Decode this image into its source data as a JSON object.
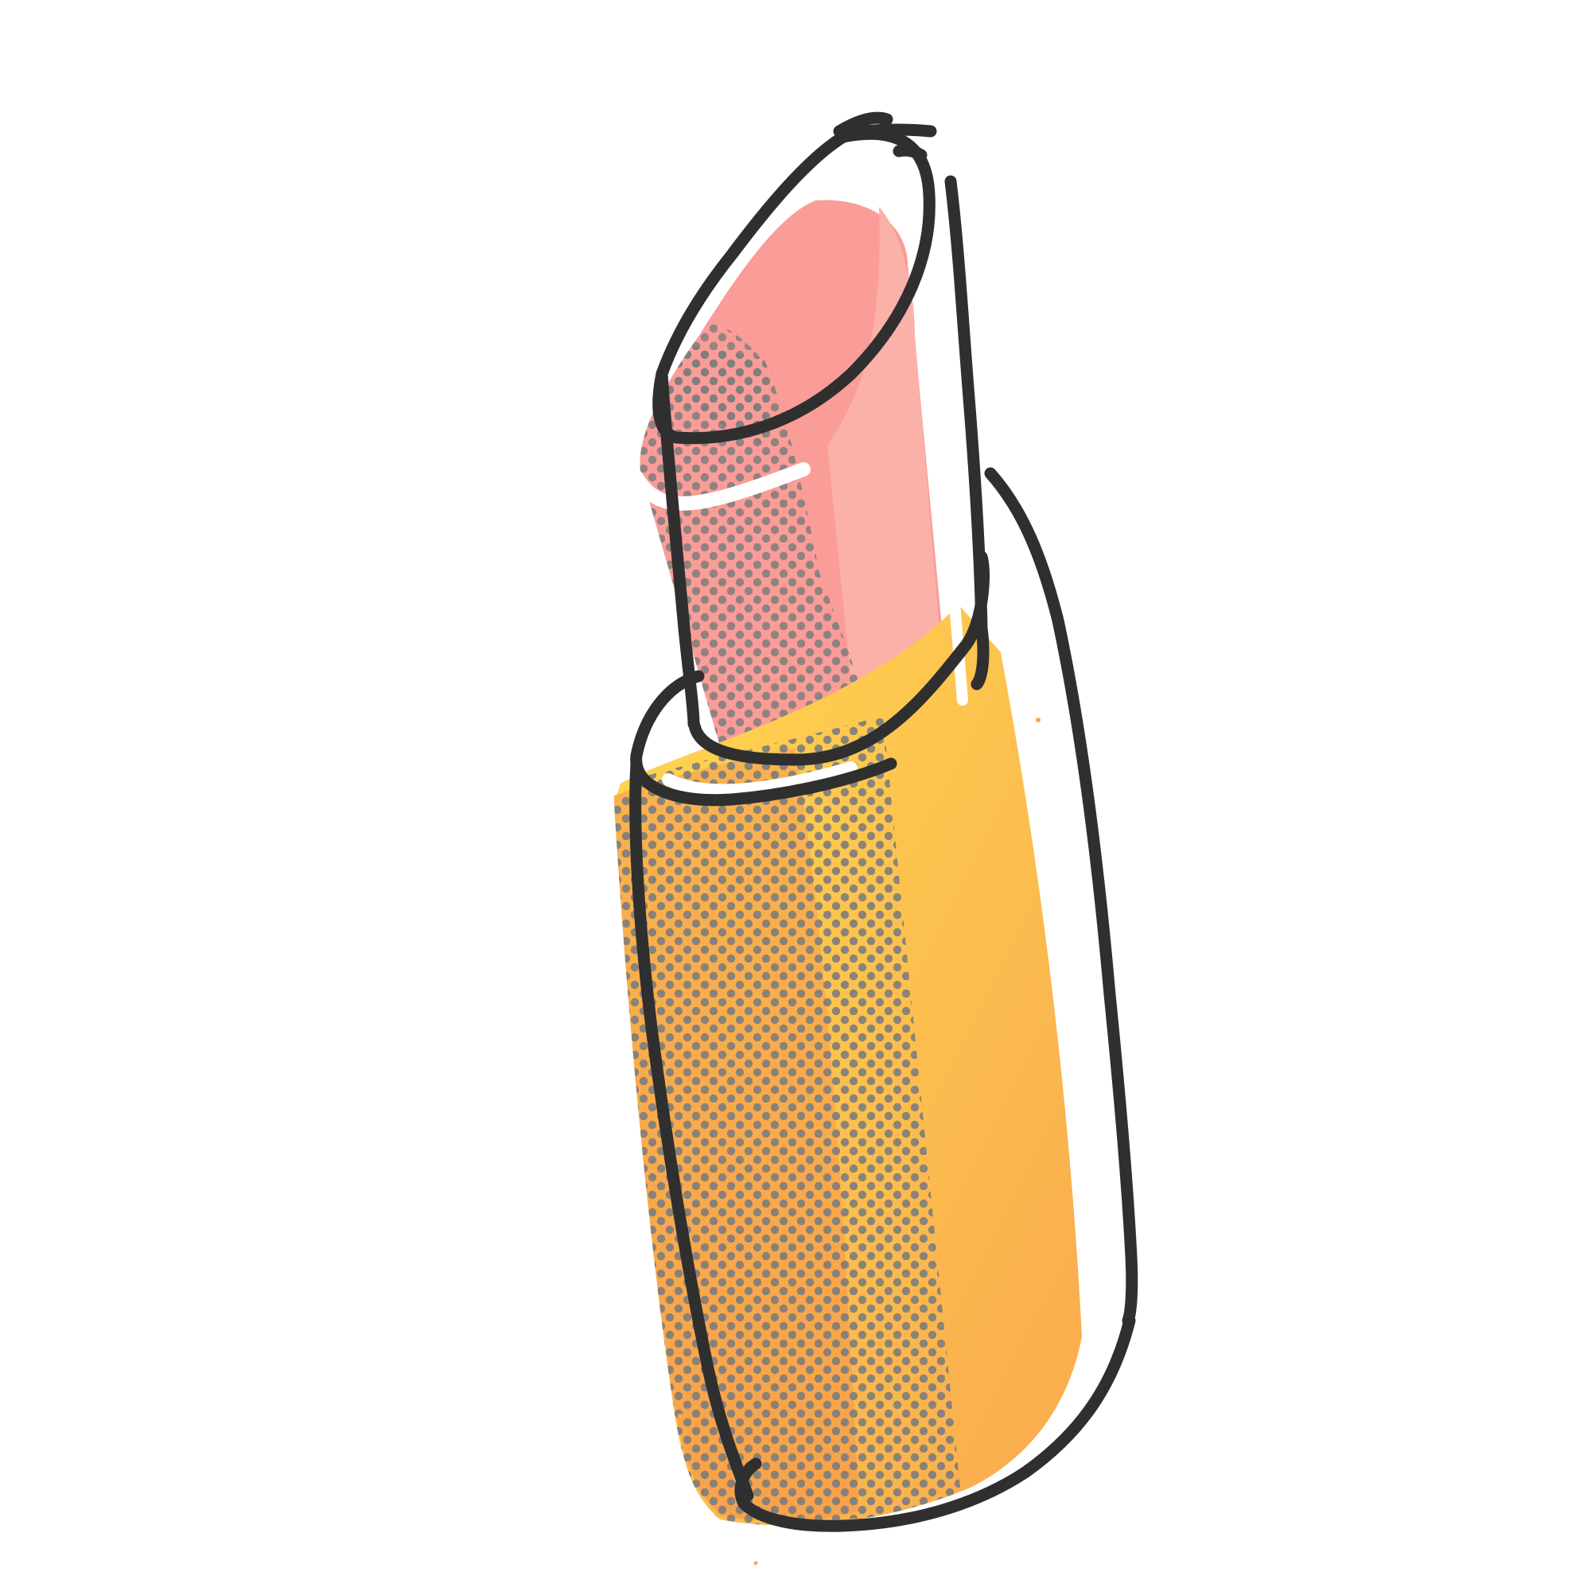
{
  "illustration": {
    "subject": "lipstick-icon",
    "style": "hand-drawn doodle with halftone dot shading",
    "colors": {
      "background": "#ffffff",
      "outline": "#2f2f2f",
      "bullet_fill": "#fa9c97",
      "bullet_highlight": "#fbb0a8",
      "tube_fill_light": "#ffd84f",
      "tube_fill_dark": "#f9a94e",
      "halftone_dots": "#7d7d7d",
      "highlight_gap": "#ffffff"
    }
  }
}
